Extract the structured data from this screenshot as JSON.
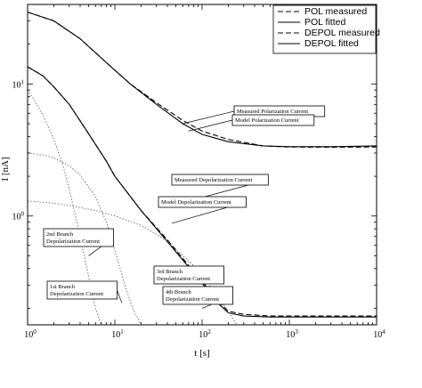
{
  "chart_data": {
    "type": "line",
    "title": "",
    "xlabel": "t [s]",
    "ylabel": "I [nA]",
    "xscale": "log",
    "yscale": "log",
    "xlim": [
      1,
      10000
    ],
    "ylim": [
      0.15,
      40
    ],
    "grid": false,
    "legend_position": "top-right",
    "x_ticks": [
      {
        "value": 1,
        "base": "10",
        "exp": "0"
      },
      {
        "value": 10,
        "base": "10",
        "exp": "1"
      },
      {
        "value": 100,
        "base": "10",
        "exp": "2"
      },
      {
        "value": 1000,
        "base": "10",
        "exp": "3"
      },
      {
        "value": 10000,
        "base": "10",
        "exp": "4"
      }
    ],
    "y_ticks": [
      {
        "value": 1,
        "base": "10",
        "exp": "0"
      },
      {
        "value": 10,
        "base": "10",
        "exp": "1"
      }
    ],
    "series": [
      {
        "name": "POL measured",
        "style": "dashed",
        "legend": true,
        "x": [
          1,
          2,
          4,
          8,
          15,
          30,
          60,
          100,
          200,
          500,
          1000,
          3000,
          10000
        ],
        "y": [
          35,
          30,
          22,
          14.5,
          10,
          7.2,
          5.3,
          4.4,
          3.8,
          3.4,
          3.33,
          3.32,
          3.33
        ]
      },
      {
        "name": "POL fitted",
        "style": "solid",
        "legend": true,
        "x": [
          1,
          2,
          4,
          8,
          15,
          30,
          60,
          100,
          200,
          500,
          1000,
          3000,
          10000
        ],
        "y": [
          35,
          30,
          22,
          14.5,
          10,
          7.0,
          5.0,
          4.15,
          3.65,
          3.4,
          3.35,
          3.35,
          3.4
        ]
      },
      {
        "name": "DEPOL measured",
        "style": "dashed",
        "legend": true,
        "x": [
          1,
          1.5,
          2,
          3,
          5,
          8,
          10,
          20,
          40,
          80,
          100,
          150,
          200,
          300,
          600,
          1000,
          3000,
          10000
        ],
        "y": [
          13.5,
          11.5,
          9.5,
          7.0,
          4.2,
          2.6,
          2.0,
          1.1,
          0.66,
          0.38,
          0.32,
          0.23,
          0.19,
          0.18,
          0.175,
          0.175,
          0.175,
          0.175
        ]
      },
      {
        "name": "DEPOL fitted",
        "style": "solid",
        "legend": true,
        "x": [
          1,
          1.5,
          2,
          3,
          5,
          8,
          10,
          20,
          40,
          80,
          100,
          150,
          200,
          300,
          600,
          1000,
          3000,
          10000
        ],
        "y": [
          13.5,
          11.5,
          9.5,
          7.0,
          4.2,
          2.6,
          2.0,
          1.1,
          0.64,
          0.37,
          0.31,
          0.22,
          0.185,
          0.175,
          0.172,
          0.172,
          0.172,
          0.172
        ]
      },
      {
        "name": "",
        "style": "dotted",
        "legend": false,
        "x": [
          1,
          2,
          3,
          4,
          6,
          10,
          20,
          40,
          80,
          150,
          250
        ],
        "y": [
          1.3,
          1.25,
          1.2,
          1.16,
          1.1,
          1.0,
          0.85,
          0.65,
          0.42,
          0.25,
          0.15
        ]
      },
      {
        "name": "",
        "style": "dotted",
        "legend": false,
        "x": [
          1,
          1.5,
          2,
          3,
          4,
          6,
          8,
          10,
          13,
          16,
          20
        ],
        "y": [
          3.0,
          2.9,
          2.75,
          2.4,
          2.05,
          1.4,
          0.9,
          0.55,
          0.3,
          0.2,
          0.15
        ]
      },
      {
        "name": "",
        "style": "dotted",
        "legend": false,
        "x": [
          1,
          1.2,
          1.5,
          2,
          2.5,
          3,
          4,
          5,
          6,
          7
        ],
        "y": [
          9,
          7.5,
          5.8,
          3.8,
          2.5,
          1.6,
          0.7,
          0.35,
          0.2,
          0.15
        ]
      }
    ],
    "annotations": [
      {
        "lines": [
          "Measured Polarization Current"
        ],
        "x": 60,
        "y": 5.0
      },
      {
        "lines": [
          "Model Polarization Current"
        ],
        "x": 70,
        "y": 4.4
      },
      {
        "lines": [
          "Measured Depolarization Current"
        ],
        "x": 45,
        "y": 1.2
      },
      {
        "lines": [
          "Model Depolarization Current"
        ],
        "x": 45,
        "y": 0.88
      },
      {
        "lines": [
          "2nd Branch",
          "Depolarization Current"
        ],
        "x": 5,
        "y": 0.5
      },
      {
        "lines": [
          "3rd Branch",
          "Depolarization Current"
        ],
        "x": 55,
        "y": 0.32
      },
      {
        "lines": [
          "4th Branch",
          "Depolarization Current"
        ],
        "x": 100,
        "y": 0.2
      },
      {
        "lines": [
          "1st Branch",
          "Depolarization Current"
        ],
        "x": 12,
        "y": 0.22
      }
    ]
  }
}
